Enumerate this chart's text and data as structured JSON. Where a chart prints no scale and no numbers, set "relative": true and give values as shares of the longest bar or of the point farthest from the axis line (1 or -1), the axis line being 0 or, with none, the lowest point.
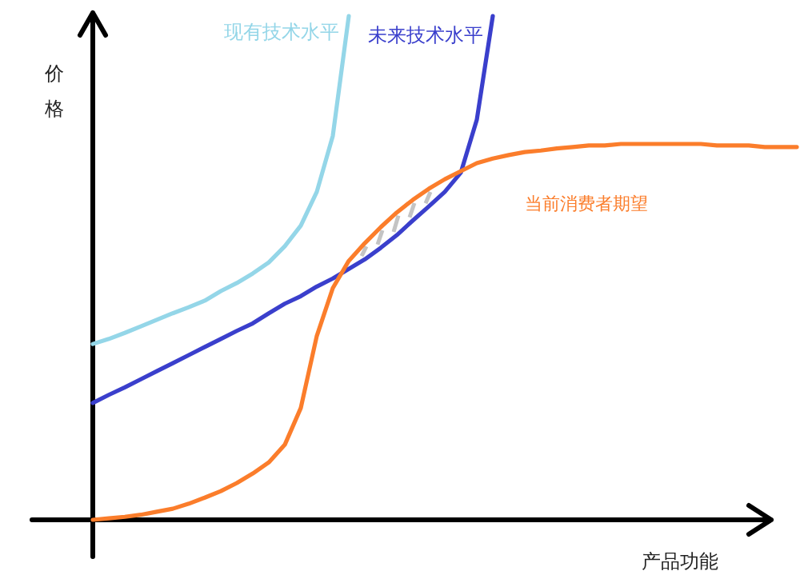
{
  "chart_data": {
    "type": "line",
    "relative": true,
    "xlabel": "产品功能",
    "ylabel": "价格",
    "categories": [
      null,
      null,
      null,
      null,
      null,
      null,
      null,
      null,
      null,
      null,
      null,
      null,
      null,
      null,
      null,
      null,
      null,
      null,
      null,
      null,
      null,
      null,
      null,
      null,
      null,
      null,
      null,
      null,
      null,
      null,
      null,
      null,
      null,
      null,
      null,
      null,
      null,
      null,
      null,
      null,
      null,
      null,
      null,
      null,
      null
    ],
    "series": [
      {
        "name": "现有技术水平",
        "color": "#94d6e8",
        "values": [
          0.349,
          0.359,
          0.371,
          0.384,
          0.397,
          0.41,
          0.422,
          0.435,
          0.454,
          0.47,
          0.489,
          0.511,
          0.543,
          0.584,
          0.651,
          0.762,
          1.0,
          null,
          null,
          null,
          null,
          null,
          null,
          null,
          null,
          null,
          null,
          null,
          null,
          null,
          null,
          null,
          null,
          null,
          null,
          null,
          null,
          null,
          null,
          null,
          null,
          null,
          null,
          null,
          null
        ]
      },
      {
        "name": "未来技术水平",
        "color": "#3a3fcc",
        "values": [
          0.232,
          0.248,
          0.263,
          0.279,
          0.295,
          0.311,
          0.327,
          0.343,
          0.359,
          0.375,
          0.39,
          0.41,
          0.429,
          0.444,
          0.463,
          0.479,
          0.498,
          0.517,
          0.54,
          0.565,
          0.594,
          0.622,
          0.651,
          0.689,
          0.794,
          1.0,
          null,
          null,
          null,
          null,
          null,
          null,
          null,
          null,
          null,
          null,
          null,
          null,
          null,
          null,
          null,
          null,
          null,
          null,
          null
        ]
      },
      {
        "name": "当前消费者期望",
        "color": "#fb7d2b",
        "values": [
          0,
          0.003,
          0.006,
          0.01,
          0.016,
          0.022,
          0.032,
          0.044,
          0.057,
          0.073,
          0.092,
          0.114,
          0.149,
          0.222,
          0.365,
          0.46,
          0.514,
          0.549,
          0.581,
          0.61,
          0.635,
          0.657,
          0.676,
          0.692,
          0.708,
          0.717,
          0.724,
          0.73,
          0.733,
          0.737,
          0.74,
          0.743,
          0.743,
          0.746,
          0.746,
          0.746,
          0.746,
          0.746,
          0.746,
          0.743,
          0.743,
          0.743,
          0.74,
          0.74,
          0.74
        ]
      }
    ]
  }
}
